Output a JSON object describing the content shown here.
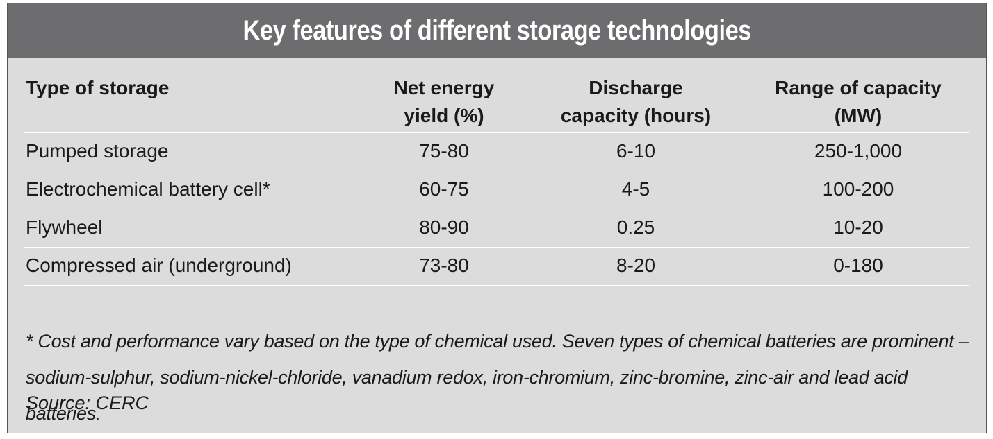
{
  "title": "Key features of different storage technologies",
  "table": {
    "headers": [
      "Type of storage",
      "Net energy yield (%)",
      "Discharge capacity (hours)",
      "Range of capacity (MW)"
    ],
    "rows": [
      [
        "Pumped storage",
        "75-80",
        "6-10",
        "250-1,000"
      ],
      [
        "Electrochemical battery cell*",
        "60-75",
        "4-5",
        "100-200"
      ],
      [
        "Flywheel",
        "80-90",
        "0.25",
        "10-20"
      ],
      [
        "Compressed air (underground)",
        "73-80",
        "8-20",
        "0-180"
      ]
    ]
  },
  "footnote": "* Cost and performance vary based on the type of chemical used. Seven types of chemical batteries are prominent – sodium-sulphur, sodium-nickel-chloride, vanadium redox, iron-chromium, zinc-bromine, zinc-air and lead acid batteries.",
  "source": "Source: CERC",
  "colors": {
    "title_bar": "#6d6c6e",
    "card_background": "#dcdcdc",
    "rule": "#ffffff"
  }
}
